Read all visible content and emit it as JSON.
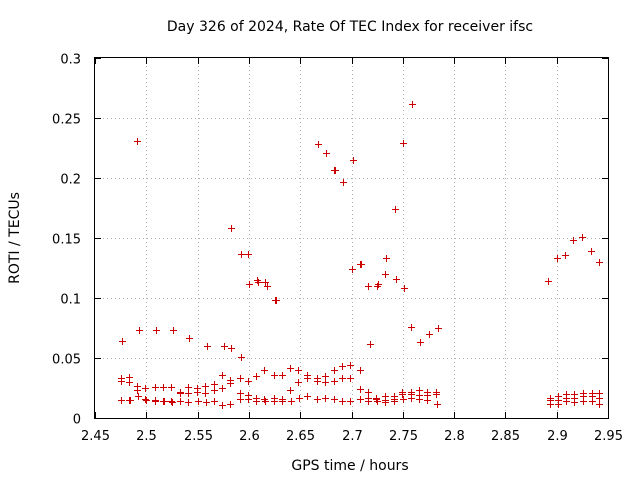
{
  "chart_data": {
    "type": "scatter",
    "title": "Day 326 of 2024, Rate Of TEC Index for receiver ifsc",
    "xlabel": "GPS time / hours",
    "ylabel": "ROTI / TECUs",
    "xlim": [
      2.45,
      2.95
    ],
    "ylim": [
      0,
      0.3
    ],
    "grid": true,
    "marker": "plus",
    "color": "#cc0000",
    "xticks": [
      "2.45",
      "2.5",
      "2.55",
      "2.6",
      "2.65",
      "2.7",
      "2.75",
      "2.8",
      "2.85",
      "2.9",
      "2.95"
    ],
    "yticks": [
      "0",
      "0.05",
      "0.1",
      "0.15",
      "0.2",
      "0.25",
      "0.3"
    ],
    "series": [
      {
        "name": "ROTI",
        "x": [
          2.475,
          2.475,
          2.475,
          2.483,
          2.483,
          2.483,
          2.484,
          2.491,
          2.491,
          2.492,
          2.499,
          2.499,
          2.5,
          2.508,
          2.508,
          2.508,
          2.516,
          2.516,
          2.517,
          2.524,
          2.524,
          2.525,
          2.533,
          2.533,
          2.533,
          2.541,
          2.541,
          2.541,
          2.549,
          2.549,
          2.55,
          2.557,
          2.557,
          2.558,
          2.566,
          2.566,
          2.566,
          2.574,
          2.574,
          2.574,
          2.582,
          2.582,
          2.582,
          2.591,
          2.591,
          2.591,
          2.599,
          2.599,
          2.599,
          2.607,
          2.607,
          2.607,
          2.615,
          2.615,
          2.616,
          2.624,
          2.624,
          2.624,
          2.632,
          2.632,
          2.632,
          2.64,
          2.64,
          2.641,
          2.648,
          2.648,
          2.649,
          2.657,
          2.657,
          2.657,
          2.666,
          2.666,
          2.666,
          2.674,
          2.674,
          2.674,
          2.683,
          2.683,
          2.683,
          2.691,
          2.691,
          2.691,
          2.699,
          2.699,
          2.699,
          2.708,
          2.708,
          2.708,
          2.716,
          2.716,
          2.716,
          2.724,
          2.724,
          2.725,
          2.733,
          2.733,
          2.733,
          2.741,
          2.741,
          2.741,
          2.749,
          2.749,
          2.75,
          2.758,
          2.758,
          2.758,
          2.766,
          2.766,
          2.766,
          2.774,
          2.774,
          2.774,
          2.782,
          2.782,
          2.783,
          2.893,
          2.893,
          2.893,
          2.901,
          2.901,
          2.901,
          2.909,
          2.909,
          2.909,
          2.917,
          2.917,
          2.917,
          2.926,
          2.926,
          2.926,
          2.934,
          2.934,
          2.934,
          2.941,
          2.941,
          2.941,
          2.476,
          2.493,
          2.509,
          2.526,
          2.542,
          2.559,
          2.576,
          2.583,
          2.592,
          2.6,
          2.609,
          2.618,
          2.626,
          2.667,
          2.675,
          2.684,
          2.692,
          2.701,
          2.709,
          2.718,
          2.726,
          2.734,
          2.743,
          2.751,
          2.759,
          2.767,
          2.776,
          2.784,
          2.892,
          2.9,
          2.908,
          2.916,
          2.925,
          2.933,
          2.941,
          2.491,
          2.583,
          2.592,
          2.599,
          2.608,
          2.616,
          2.625,
          2.667,
          2.675,
          2.683,
          2.692,
          2.7,
          2.708,
          2.716,
          2.725,
          2.733,
          2.742,
          2.75,
          2.758
        ],
        "y": [
          0.033,
          0.031,
          0.015,
          0.034,
          0.03,
          0.015,
          0.015,
          0.027,
          0.023,
          0.018,
          0.025,
          0.016,
          0.015,
          0.026,
          0.015,
          0.014,
          0.026,
          0.014,
          0.014,
          0.026,
          0.014,
          0.013,
          0.022,
          0.021,
          0.014,
          0.026,
          0.021,
          0.013,
          0.025,
          0.022,
          0.014,
          0.027,
          0.021,
          0.013,
          0.028,
          0.023,
          0.014,
          0.036,
          0.025,
          0.011,
          0.032,
          0.029,
          0.012,
          0.033,
          0.021,
          0.016,
          0.031,
          0.019,
          0.016,
          0.035,
          0.017,
          0.014,
          0.04,
          0.016,
          0.014,
          0.036,
          0.017,
          0.014,
          0.036,
          0.016,
          0.014,
          0.042,
          0.023,
          0.014,
          0.04,
          0.03,
          0.017,
          0.036,
          0.033,
          0.018,
          0.033,
          0.031,
          0.016,
          0.035,
          0.03,
          0.017,
          0.04,
          0.031,
          0.016,
          0.043,
          0.033,
          0.014,
          0.044,
          0.033,
          0.014,
          0.04,
          0.024,
          0.016,
          0.022,
          0.017,
          0.014,
          0.017,
          0.016,
          0.014,
          0.018,
          0.015,
          0.013,
          0.018,
          0.016,
          0.014,
          0.022,
          0.02,
          0.016,
          0.022,
          0.02,
          0.017,
          0.023,
          0.019,
          0.016,
          0.022,
          0.019,
          0.015,
          0.022,
          0.02,
          0.012,
          0.017,
          0.015,
          0.012,
          0.018,
          0.015,
          0.012,
          0.02,
          0.017,
          0.014,
          0.02,
          0.017,
          0.013,
          0.021,
          0.018,
          0.014,
          0.021,
          0.018,
          0.014,
          0.021,
          0.017,
          0.012,
          0.064,
          0.073,
          0.073,
          0.073,
          0.067,
          0.06,
          0.06,
          0.058,
          0.051,
          0.112,
          0.113,
          0.11,
          0.098,
          0.228,
          0.221,
          0.207,
          0.197,
          0.215,
          0.128,
          0.062,
          0.112,
          0.133,
          0.116,
          0.108,
          0.262,
          0.063,
          0.07,
          0.075,
          0.114,
          0.133,
          0.136,
          0.148,
          0.151,
          0.139,
          0.13,
          0.231,
          0.158,
          0.137,
          0.137,
          0.115,
          0.113,
          0.098,
          0.228,
          0.221,
          0.207,
          0.197,
          0.124,
          0.128,
          0.11,
          0.11,
          0.12,
          0.174,
          0.229,
          0.076
        ]
      }
    ]
  }
}
